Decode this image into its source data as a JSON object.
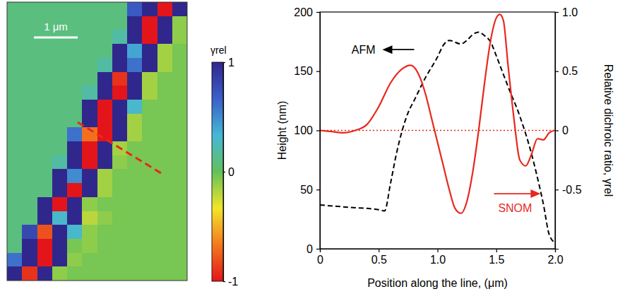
{
  "chart_data": [
    {
      "type": "heatmap",
      "scale_bar": "1 μm",
      "colorbar_title": "γrel",
      "colorbar_range": [
        -1,
        1
      ],
      "colorbar_ticks": [
        -1,
        0,
        1
      ],
      "cells": [
        [
          0.1,
          0.1,
          0.1,
          0.1,
          0.1,
          0.1,
          0.1,
          0.1,
          0.7,
          1,
          -1,
          1
        ],
        [
          0.1,
          0.1,
          0.1,
          0.1,
          0.1,
          0.1,
          0.1,
          0.1,
          1,
          -1,
          1,
          -0.1
        ],
        [
          0.1,
          0.1,
          0.1,
          0.1,
          0.1,
          0.1,
          0.1,
          0.2,
          1,
          -1,
          1,
          -0.1
        ],
        [
          0.1,
          0.1,
          0.1,
          0.1,
          0.1,
          0.1,
          0.1,
          1,
          0.4,
          1,
          -0.15,
          -0.05
        ],
        [
          0.1,
          0.1,
          0.1,
          0.1,
          0.1,
          0.1,
          0.2,
          1,
          0.6,
          1,
          -0.15,
          -0.05
        ],
        [
          0.1,
          0.1,
          0.1,
          0.1,
          0.1,
          0.1,
          1,
          -0.9,
          1,
          -0.15,
          -0.05,
          -0.05
        ],
        [
          0.1,
          0.1,
          0.1,
          0.1,
          0.1,
          0.2,
          1,
          -1,
          1,
          -0.15,
          -0.05,
          -0.05
        ],
        [
          0.1,
          0.1,
          0.1,
          0.1,
          0.1,
          1,
          -1,
          1,
          0.3,
          -0.05,
          -0.05,
          -0.05
        ],
        [
          0.1,
          0.1,
          0.1,
          0.1,
          0.1,
          1,
          -1,
          1,
          -0.15,
          -0.05,
          -0.05,
          -0.05
        ],
        [
          0.1,
          0.1,
          0.1,
          0.1,
          0.6,
          -0.7,
          -1,
          1,
          -0.15,
          -0.05,
          -0.05,
          -0.05
        ],
        [
          0.1,
          0.1,
          0.1,
          0.1,
          1,
          -1,
          1,
          -0.15,
          -0.05,
          -0.05,
          -0.05,
          -0.05
        ],
        [
          0.1,
          0.1,
          0.1,
          0.2,
          1,
          -1,
          1,
          -0.1,
          -0.05,
          -0.05,
          -0.05,
          -0.05
        ],
        [
          0.1,
          0.1,
          0.1,
          1,
          0.5,
          1,
          -0.15,
          -0.05,
          -0.05,
          -0.05,
          -0.05,
          -0.05
        ],
        [
          0.1,
          0.1,
          0.1,
          1,
          -1,
          1,
          -0.15,
          -0.05,
          -0.05,
          -0.05,
          -0.05,
          -0.05
        ],
        [
          0.1,
          0.1,
          1,
          -1,
          1,
          -0.1,
          -0.05,
          -0.05,
          -0.05,
          -0.05,
          -0.05,
          -0.05
        ],
        [
          0.1,
          0.1,
          1,
          0.3,
          1,
          -0.2,
          -0.1,
          -0.05,
          -0.05,
          -0.05,
          -0.05,
          -0.05
        ],
        [
          0.1,
          0.8,
          -0.8,
          1,
          0.3,
          -0.1,
          -0.05,
          -0.05,
          -0.05,
          -0.05,
          -0.05,
          -0.05
        ],
        [
          0.1,
          1,
          -1,
          1,
          -0.05,
          -0.1,
          -0.05,
          -0.05,
          -0.05,
          -0.05,
          -0.05,
          -0.05
        ],
        [
          0.6,
          1,
          -1,
          1,
          -0.1,
          -0.05,
          -0.05,
          -0.05,
          -0.05,
          -0.05,
          -0.05,
          -0.05
        ],
        [
          1,
          -0.9,
          1,
          -0.1,
          -0.05,
          -0.05,
          -0.05,
          -0.05,
          -0.05,
          -0.05,
          -0.05,
          -0.05
        ]
      ]
    },
    {
      "type": "line",
      "xlabel": "Position along the line, (μm)",
      "ylabel": "Height (nm)",
      "y2label": "Relative dichroic ratio, γrel",
      "xlim": [
        0,
        2
      ],
      "xticks": [
        0,
        0.5,
        {
          "value": 1,
          "label": "1.0"
        },
        1.5,
        {
          "value": 2,
          "label": "2.0"
        }
      ],
      "ylim": [
        0,
        200
      ],
      "yticks": [
        0,
        50,
        100,
        150,
        200
      ],
      "y2lim": [
        -1,
        1
      ],
      "y2ticks": [
        -0.5,
        0,
        0.5,
        {
          "value": 1,
          "label": "1.0"
        }
      ],
      "grid": false,
      "hlines": [
        {
          "value": 0,
          "axis": "y2",
          "color": "#e8281e",
          "line_style": "dotted"
        }
      ],
      "series": [
        {
          "name": "AFM",
          "color": "#000000",
          "line_style": "dashed",
          "axis": "y",
          "label_x": 0.37,
          "label_y": 165,
          "x": [
            0,
            0.25,
            0.5,
            0.55,
            0.6,
            0.65,
            0.7,
            0.75,
            0.8,
            0.9,
            1.0,
            1.05,
            1.1,
            1.2,
            1.25,
            1.3,
            1.35,
            1.4,
            1.45,
            1.5,
            1.55,
            1.6,
            1.7,
            1.8,
            1.85,
            1.9,
            1.95,
            2.0
          ],
          "values": [
            37,
            35,
            33,
            32,
            55,
            80,
            100,
            115,
            125,
            145,
            162,
            172,
            176,
            173,
            176,
            181,
            183,
            180,
            175,
            163,
            150,
            137,
            112,
            80,
            60,
            38,
            12,
            5
          ]
        },
        {
          "name": "SNOM",
          "color": "#e8281e",
          "line_style": "solid",
          "axis": "y2",
          "label_x": 1.66,
          "label_y": -0.69,
          "x": [
            0,
            0.1,
            0.2,
            0.3,
            0.4,
            0.5,
            0.6,
            0.7,
            0.77,
            0.85,
            0.9,
            0.95,
            1.0,
            1.05,
            1.1,
            1.15,
            1.2,
            1.25,
            1.3,
            1.35,
            1.4,
            1.45,
            1.5,
            1.53,
            1.56,
            1.6,
            1.65,
            1.7,
            1.75,
            1.8,
            1.85,
            1.9,
            1.95,
            2.0
          ],
          "values": [
            0,
            -0.01,
            -0.02,
            0,
            0.05,
            0.2,
            0.4,
            0.52,
            0.55,
            0.45,
            0.3,
            0.1,
            -0.1,
            -0.3,
            -0.5,
            -0.66,
            -0.7,
            -0.6,
            -0.35,
            0,
            0.4,
            0.75,
            0.95,
            0.98,
            0.93,
            0.55,
            0.1,
            -0.25,
            -0.3,
            -0.2,
            -0.07,
            -0.08,
            -0.02,
            0
          ]
        }
      ]
    }
  ]
}
